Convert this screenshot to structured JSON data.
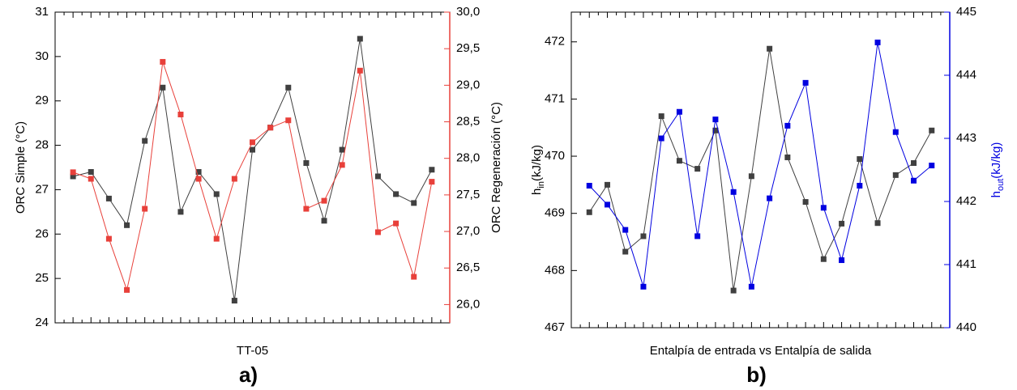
{
  "chart_data": [
    {
      "type": "line",
      "xlabel": "TT-05",
      "ylabel": "ORC Simple (°C)",
      "y2label": "ORC Regeneración (°C)",
      "panel": "a)",
      "categories": [
        null,
        null,
        null,
        null,
        null,
        null,
        null,
        null,
        null,
        null,
        null,
        null,
        null,
        null,
        null,
        null,
        null,
        null,
        null,
        null,
        null
      ],
      "ylim": [
        24,
        31
      ],
      "yticks": [
        24,
        25,
        26,
        27,
        28,
        29,
        30,
        31
      ],
      "y2lim": [
        25.75,
        30
      ],
      "y2ticks": [
        {
          "value": 26,
          "label": "26,0"
        },
        {
          "value": 26.5,
          "label": "26,5"
        },
        {
          "value": 27,
          "label": "27,0"
        },
        {
          "value": 27.5,
          "label": "27,5"
        },
        {
          "value": 28,
          "label": "28,0"
        },
        {
          "value": 28.5,
          "label": "28,5"
        },
        {
          "value": 29,
          "label": "29,0"
        },
        {
          "value": 29.5,
          "label": "29,5"
        },
        {
          "value": 30,
          "label": "30,0"
        }
      ],
      "y2color": "#e8403a",
      "series": [
        {
          "color": "#404040",
          "values": [
            27.3,
            27.4,
            26.8,
            26.2,
            28.1,
            29.3,
            26.5,
            27.4,
            26.9,
            24.5,
            27.9,
            28.4,
            29.3,
            27.6,
            26.3,
            27.9,
            30.4,
            27.3,
            26.9,
            26.7,
            27.45
          ]
        },
        {
          "color": "#e8403a",
          "axis": "y2",
          "values": [
            27.81,
            27.72,
            26.9,
            26.2,
            27.31,
            29.32,
            28.6,
            27.72,
            26.9,
            27.72,
            28.22,
            28.42,
            28.52,
            27.31,
            27.42,
            27.91,
            29.2,
            26.99,
            27.11,
            26.38,
            27.68
          ]
        }
      ]
    },
    {
      "type": "line",
      "xlabel": "Entalpía de entrada vs Entalpía de salida",
      "ylabel": {
        "main": "h",
        "sub": "in",
        "unit": "(kJ/kg)"
      },
      "y2label": {
        "main": "h",
        "sub": "out",
        "unit": "(kJ/kg)"
      },
      "panel": "b)",
      "categories": [
        null,
        null,
        null,
        null,
        null,
        null,
        null,
        null,
        null,
        null,
        null,
        null,
        null,
        null,
        null,
        null,
        null,
        null,
        null,
        null
      ],
      "ylim": [
        467,
        472.52
      ],
      "yticks": [
        467,
        468,
        469,
        470,
        471,
        472
      ],
      "y2lim": [
        440,
        445
      ],
      "y2ticks": [
        440,
        441,
        442,
        443,
        444,
        445
      ],
      "y2color": "#0000e0",
      "series": [
        {
          "color": "#404040",
          "values": [
            469.02,
            469.5,
            468.33,
            468.6,
            470.7,
            469.92,
            469.78,
            470.45,
            467.65,
            469.65,
            471.88,
            469.98,
            469.2,
            468.2,
            468.82,
            469.95,
            468.83,
            469.67,
            469.88,
            470.45
          ]
        },
        {
          "color": "#0000e0",
          "axis": "y2",
          "values": [
            442.25,
            441.95,
            441.55,
            440.65,
            443.0,
            443.42,
            441.45,
            443.3,
            442.15,
            440.65,
            442.05,
            443.2,
            443.88,
            441.9,
            441.07,
            442.25,
            444.52,
            443.1,
            442.33,
            442.57
          ]
        }
      ]
    }
  ]
}
